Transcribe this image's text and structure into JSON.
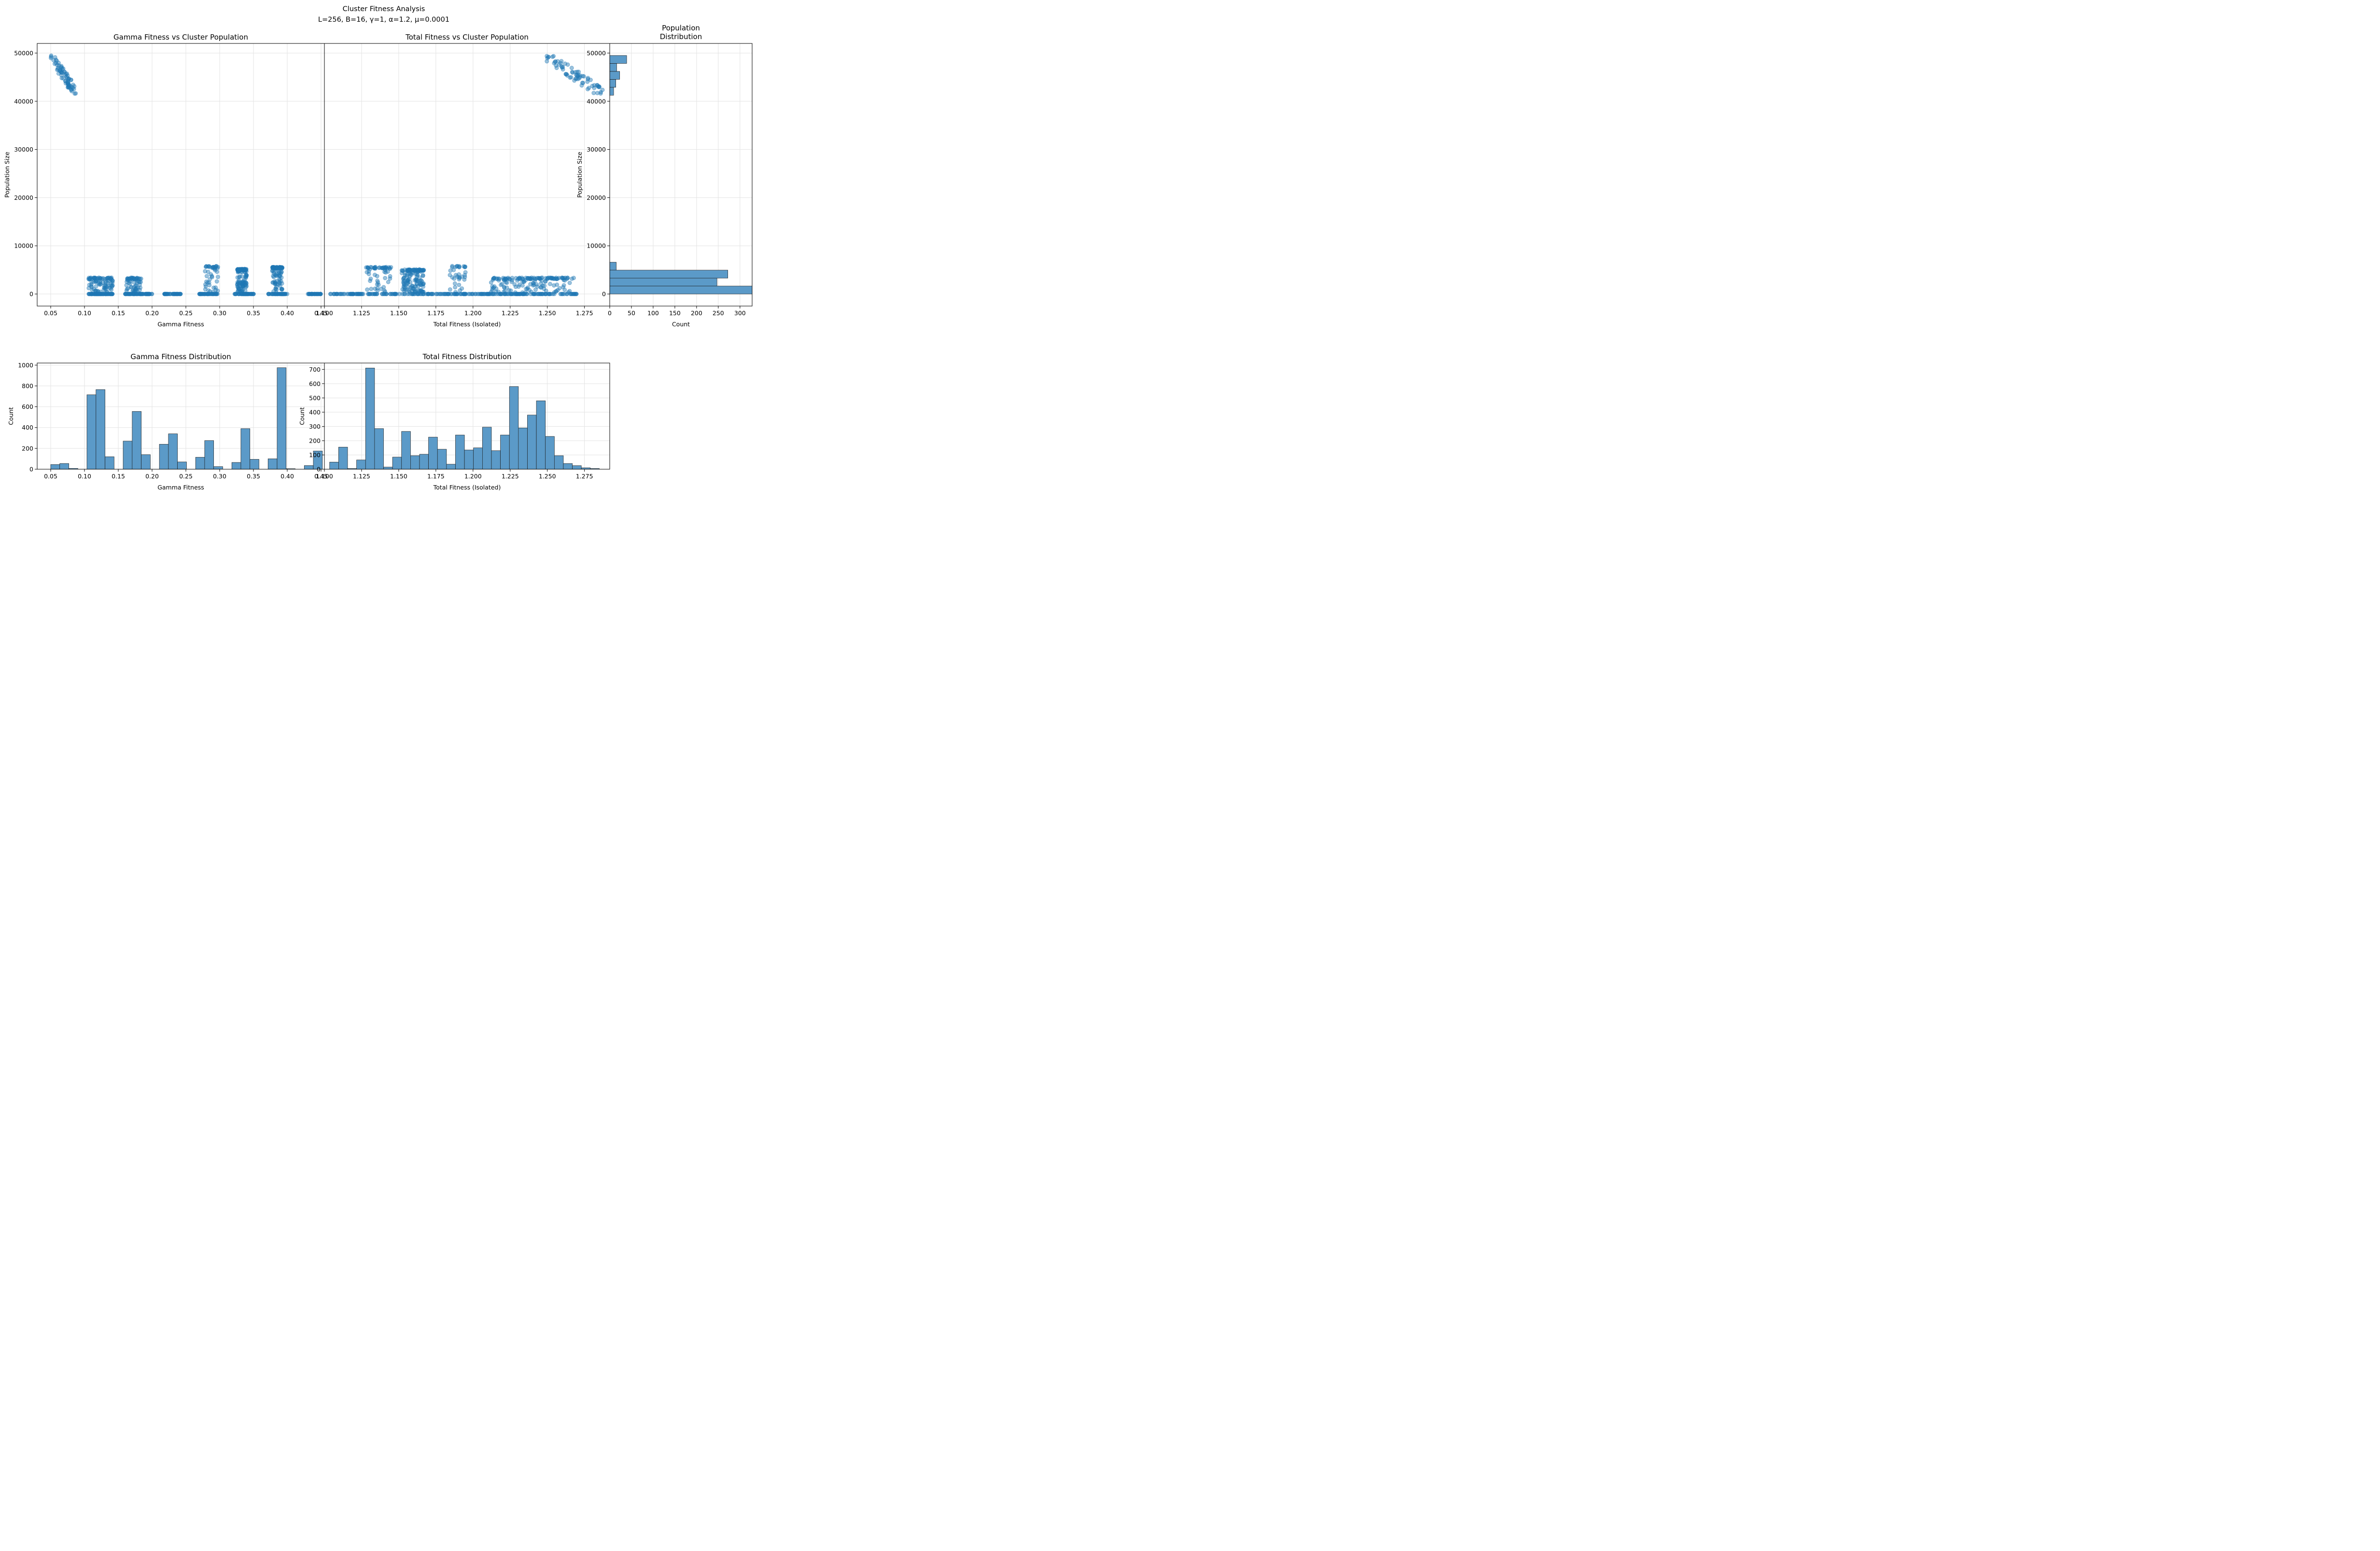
{
  "figure": {
    "suptitle_line1": "Cluster Fitness Analysis",
    "suptitle_line2": "L=256, B=16, γ=1, α=1.2, μ=0.0001"
  },
  "colors": {
    "point": "#1f77b4",
    "bar": "#5b9ac8",
    "bar_edge": "#1a1a1a",
    "grid": "#e3e3e3"
  },
  "chart_data": [
    {
      "id": "gamma_vs_pop",
      "type": "scatter",
      "title": "Gamma Fitness vs Cluster Population",
      "xlabel": "Gamma Fitness",
      "ylabel": "Population Size",
      "xlim": [
        0.03,
        0.455
      ],
      "ylim": [
        -2500,
        52000
      ],
      "xticks": [
        "0.05",
        "0.10",
        "0.15",
        "0.20",
        "0.25",
        "0.30",
        "0.35",
        "0.40",
        "0.45"
      ],
      "yticks": [
        "0",
        "10000",
        "20000",
        "30000",
        "40000",
        "50000"
      ],
      "grid": true,
      "clusters": [
        {
          "x": [
            0.05,
            0.088
          ],
          "y": [
            41500,
            49500
          ],
          "trend": "descending",
          "n": 70
        },
        {
          "x": [
            0.106,
            0.142
          ],
          "y": [
            0,
            0
          ],
          "n": 80
        },
        {
          "x": [
            0.106,
            0.142
          ],
          "y": [
            300,
            3400
          ],
          "n": 90
        },
        {
          "x": [
            0.16,
            0.2
          ],
          "y": [
            0,
            0
          ],
          "n": 70
        },
        {
          "x": [
            0.162,
            0.184
          ],
          "y": [
            300,
            3400
          ],
          "n": 60
        },
        {
          "x": [
            0.218,
            0.245
          ],
          "y": [
            0,
            0
          ],
          "n": 40
        },
        {
          "x": [
            0.27,
            0.298
          ],
          "y": [
            0,
            0
          ],
          "n": 40
        },
        {
          "x": [
            0.278,
            0.298
          ],
          "y": [
            300,
            5800
          ],
          "n": 45
        },
        {
          "x": [
            0.322,
            0.352
          ],
          "y": [
            0,
            0
          ],
          "n": 50
        },
        {
          "x": [
            0.326,
            0.34
          ],
          "y": [
            300,
            5200
          ],
          "n": 120
        },
        {
          "x": [
            0.372,
            0.4
          ],
          "y": [
            0,
            0
          ],
          "n": 50
        },
        {
          "x": [
            0.378,
            0.393
          ],
          "y": [
            300,
            5600
          ],
          "n": 90
        },
        {
          "x": [
            0.43,
            0.45
          ],
          "y": [
            0,
            0
          ],
          "n": 35
        }
      ]
    },
    {
      "id": "total_vs_pop",
      "type": "scatter",
      "title": "Total Fitness vs Cluster Population",
      "xlabel": "Total Fitness (Isolated)",
      "ylabel": "",
      "xlim": [
        1.1,
        1.292
      ],
      "ylim": [
        -2500,
        52000
      ],
      "xticks": [
        "1.100",
        "1.125",
        "1.150",
        "1.175",
        "1.200",
        "1.225",
        "1.250",
        "1.275"
      ],
      "yticks": [],
      "grid": true,
      "clusters": [
        {
          "x": [
            1.249,
            1.288
          ],
          "y": [
            41500,
            49500
          ],
          "trend": "descending",
          "n": 70
        },
        {
          "x": [
            1.104,
            1.27
          ],
          "y": [
            0,
            0
          ],
          "n": 260
        },
        {
          "x": [
            1.128,
            1.145
          ],
          "y": [
            300,
            5600
          ],
          "n": 60
        },
        {
          "x": [
            1.152,
            1.167
          ],
          "y": [
            300,
            5100
          ],
          "n": 140
        },
        {
          "x": [
            1.183,
            1.195
          ],
          "y": [
            300,
            5800
          ],
          "n": 35
        },
        {
          "x": [
            1.212,
            1.268
          ],
          "y": [
            300,
            3400
          ],
          "n": 160
        }
      ]
    },
    {
      "id": "pop_distribution",
      "type": "bar",
      "orientation": "horizontal",
      "title_line1": "Population",
      "title_line2": "Distribution",
      "xlabel": "Count",
      "ylabel": "Population Size",
      "xlim": [
        0,
        328
      ],
      "ylim": [
        -2500,
        52000
      ],
      "xticks": [
        "0",
        "50",
        "100",
        "150",
        "200",
        "250",
        "300"
      ],
      "yticks": [
        "0",
        "10000",
        "20000",
        "30000",
        "40000",
        "50000"
      ],
      "grid": true,
      "bins": [
        {
          "y0": 0,
          "y1": 1650,
          "count": 328
        },
        {
          "y0": 1650,
          "y1": 3300,
          "count": 247
        },
        {
          "y0": 3300,
          "y1": 4950,
          "count": 272
        },
        {
          "y0": 4950,
          "y1": 6600,
          "count": 15
        },
        {
          "y0": 41250,
          "y1": 42900,
          "count": 9
        },
        {
          "y0": 42900,
          "y1": 44550,
          "count": 14
        },
        {
          "y0": 44550,
          "y1": 46200,
          "count": 23
        },
        {
          "y0": 46200,
          "y1": 47850,
          "count": 16
        },
        {
          "y0": 47850,
          "y1": 49500,
          "count": 39
        }
      ]
    },
    {
      "id": "gamma_hist",
      "type": "bar",
      "title": "Gamma Fitness Distribution",
      "xlabel": "Gamma Fitness",
      "ylabel": "Count",
      "xlim": [
        0.03,
        0.455
      ],
      "ylim": [
        0,
        1020
      ],
      "xticks": [
        "0.05",
        "0.10",
        "0.15",
        "0.20",
        "0.25",
        "0.30",
        "0.35",
        "0.40",
        "0.45"
      ],
      "yticks": [
        "0",
        "200",
        "400",
        "600",
        "800",
        "1000"
      ],
      "grid": true,
      "bin_start": 0.05,
      "bin_width": 0.0134,
      "counts": [
        45,
        55,
        8,
        0,
        715,
        765,
        120,
        0,
        270,
        555,
        140,
        0,
        240,
        340,
        70,
        0,
        115,
        275,
        25,
        0,
        65,
        390,
        95,
        0,
        100,
        975,
        5,
        0,
        35,
        175
      ]
    },
    {
      "id": "total_hist",
      "type": "bar",
      "title": "Total Fitness Distribution",
      "xlabel": "Total Fitness (Isolated)",
      "ylabel": "Count",
      "xlim": [
        1.1,
        1.292
      ],
      "ylim": [
        0,
        745
      ],
      "xticks": [
        "1.100",
        "1.125",
        "1.150",
        "1.175",
        "1.200",
        "1.225",
        "1.250",
        "1.275"
      ],
      "yticks": [
        "0",
        "100",
        "200",
        "300",
        "400",
        "500",
        "600",
        "700"
      ],
      "grid": true,
      "bin_start": 1.1035,
      "bin_width": 0.00605,
      "counts": [
        50,
        155,
        5,
        65,
        710,
        285,
        15,
        85,
        265,
        95,
        105,
        225,
        140,
        35,
        240,
        135,
        150,
        295,
        130,
        240,
        580,
        290,
        380,
        480,
        230,
        95,
        40,
        25,
        10,
        5
      ]
    }
  ]
}
